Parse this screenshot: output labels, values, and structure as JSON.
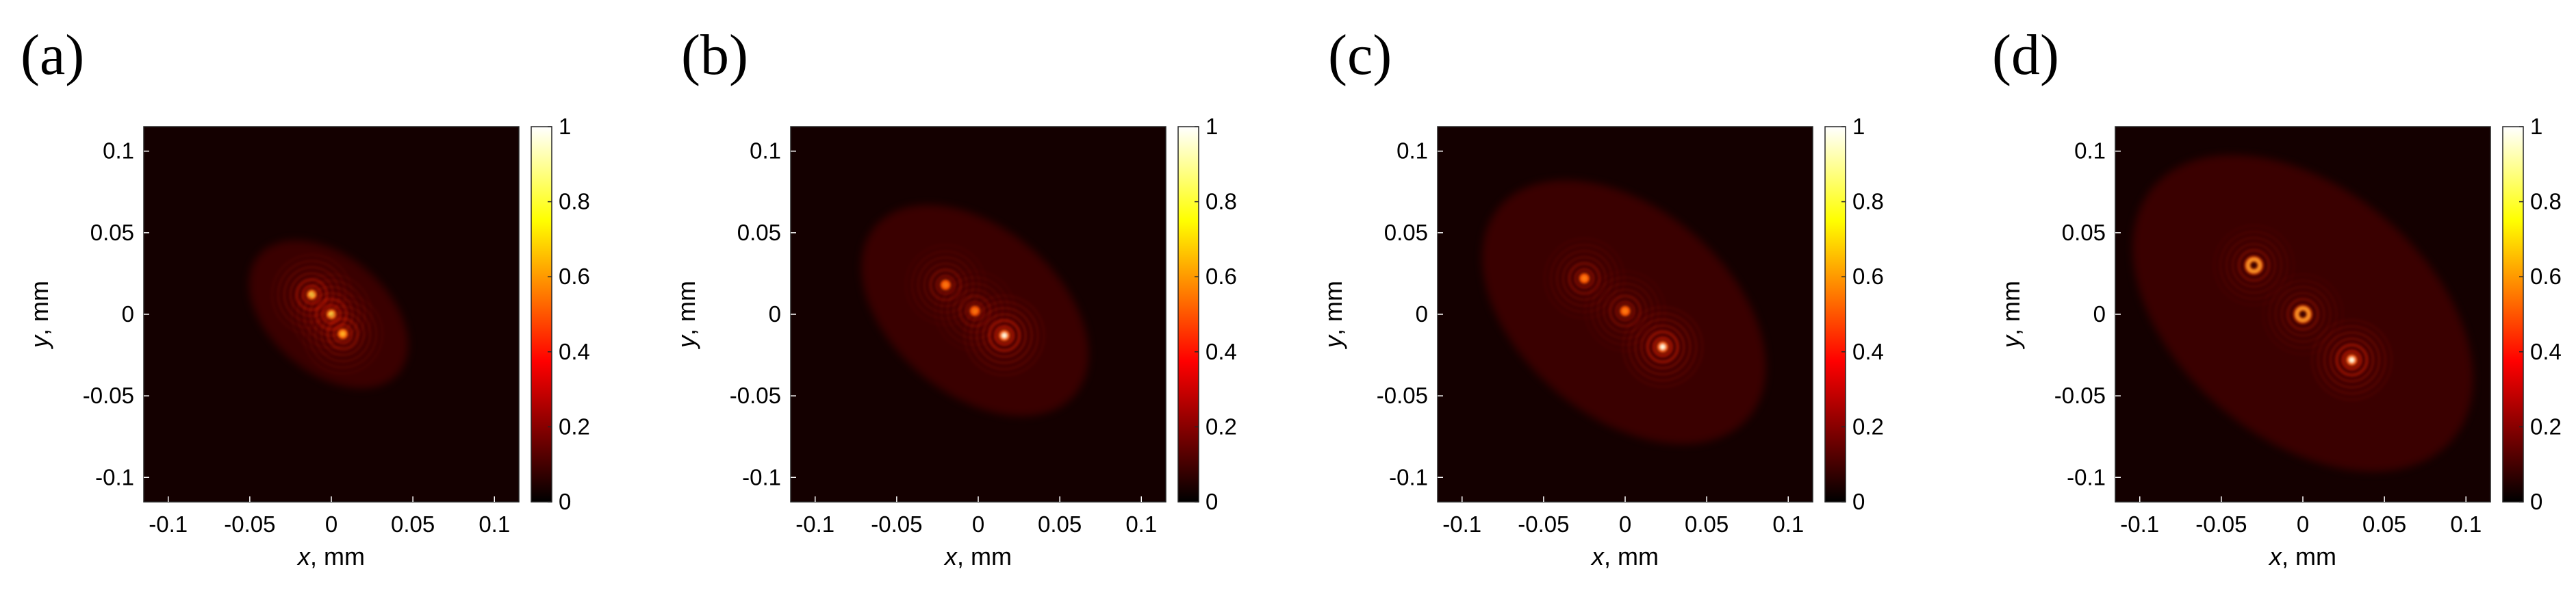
{
  "chart_data": [
    {
      "type": "heatmap",
      "panel_label": "(a)",
      "xlabel_var": "x",
      "xlabel_unit": ", mm",
      "ylabel_var": "y",
      "ylabel_unit": ", mm",
      "xlim": [
        -0.115,
        0.115
      ],
      "ylim": [
        -0.115,
        0.115
      ],
      "x_ticks": [
        -0.1,
        -0.05,
        0,
        0.05,
        0.1
      ],
      "x_tick_labels": [
        "-0.1",
        "-0.05",
        "0",
        "0.05",
        "0.1"
      ],
      "y_ticks": [
        0.1,
        0.05,
        0,
        -0.05,
        -0.1
      ],
      "y_tick_labels": [
        "0.1",
        "0.05",
        "0",
        "-0.05",
        "-0.1"
      ],
      "colorbar": {
        "range": [
          0,
          1
        ],
        "ticks": [
          1,
          0.8,
          0.6,
          0.4,
          0.2,
          0
        ],
        "tick_labels": [
          "1",
          "0.8",
          "0.6",
          "0.4",
          "0.2",
          "0"
        ],
        "colormap": "hot"
      },
      "features": [
        {
          "shape": "ring-pattern",
          "x": -0.012,
          "y": 0.012,
          "peak": 0.85
        },
        {
          "shape": "ring-pattern",
          "x": 0.0,
          "y": 0.0,
          "peak": 0.8
        },
        {
          "shape": "ring-pattern",
          "x": 0.007,
          "y": -0.012,
          "peak": 0.7
        }
      ],
      "spread_mm": 0.028
    },
    {
      "type": "heatmap",
      "panel_label": "(b)",
      "xlabel_var": "x",
      "xlabel_unit": ", mm",
      "ylabel_var": "y",
      "ylabel_unit": ", mm",
      "xlim": [
        -0.115,
        0.115
      ],
      "ylim": [
        -0.115,
        0.115
      ],
      "x_ticks": [
        -0.1,
        -0.05,
        0,
        0.05,
        0.1
      ],
      "x_tick_labels": [
        "-0.1",
        "-0.05",
        "0",
        "0.05",
        "0.1"
      ],
      "y_ticks": [
        0.1,
        0.05,
        0,
        -0.05,
        -0.1
      ],
      "y_tick_labels": [
        "0.1",
        "0.05",
        "0",
        "-0.05",
        "-0.1"
      ],
      "colorbar": {
        "range": [
          0,
          1
        ],
        "ticks": [
          1,
          0.8,
          0.6,
          0.4,
          0.2,
          0
        ],
        "tick_labels": [
          "1",
          "0.8",
          "0.6",
          "0.4",
          "0.2",
          "0"
        ],
        "colormap": "hot"
      },
      "features": [
        {
          "shape": "ring-pattern",
          "x": -0.02,
          "y": 0.018,
          "peak": 0.55
        },
        {
          "shape": "ring-pattern",
          "x": -0.002,
          "y": 0.002,
          "peak": 0.5
        },
        {
          "shape": "spot",
          "x": 0.016,
          "y": -0.013,
          "peak": 1.0
        }
      ],
      "spread_mm": 0.04
    },
    {
      "type": "heatmap",
      "panel_label": "(c)",
      "xlabel_var": "x",
      "xlabel_unit": ", mm",
      "ylabel_var": "y",
      "ylabel_unit": ", mm",
      "xlim": [
        -0.115,
        0.115
      ],
      "ylim": [
        -0.115,
        0.115
      ],
      "x_ticks": [
        -0.1,
        -0.05,
        0,
        0.05,
        0.1
      ],
      "x_tick_labels": [
        "-0.1",
        "-0.05",
        "0",
        "0.05",
        "0.1"
      ],
      "y_ticks": [
        0.1,
        0.05,
        0,
        -0.05,
        -0.1
      ],
      "y_tick_labels": [
        "0.1",
        "0.05",
        "0",
        "-0.05",
        "-0.1"
      ],
      "colorbar": {
        "range": [
          0,
          1
        ],
        "ticks": [
          1,
          0.8,
          0.6,
          0.4,
          0.2,
          0
        ],
        "tick_labels": [
          "1",
          "0.8",
          "0.6",
          "0.4",
          "0.2",
          "0"
        ],
        "colormap": "hot"
      },
      "features": [
        {
          "shape": "ring-pattern",
          "x": -0.025,
          "y": 0.022,
          "peak": 0.6
        },
        {
          "shape": "ring-pattern",
          "x": 0.0,
          "y": 0.002,
          "peak": 0.55
        },
        {
          "shape": "spot",
          "x": 0.023,
          "y": -0.02,
          "peak": 1.0
        }
      ],
      "spread_mm": 0.05
    },
    {
      "type": "heatmap",
      "panel_label": "(d)",
      "xlabel_var": "x",
      "xlabel_unit": ", mm",
      "ylabel_var": "y",
      "ylabel_unit": ", mm",
      "xlim": [
        -0.115,
        0.115
      ],
      "ylim": [
        -0.115,
        0.115
      ],
      "x_ticks": [
        -0.1,
        -0.05,
        0,
        0.05,
        0.1
      ],
      "x_tick_labels": [
        "-0.1",
        "-0.05",
        "0",
        "0.05",
        "0.1"
      ],
      "y_ticks": [
        0.1,
        0.05,
        0,
        -0.05,
        -0.1
      ],
      "y_tick_labels": [
        "0.1",
        "0.05",
        "0",
        "-0.05",
        "-0.1"
      ],
      "colorbar": {
        "range": [
          0,
          1
        ],
        "ticks": [
          1,
          0.8,
          0.6,
          0.4,
          0.2,
          0
        ],
        "tick_labels": [
          "1",
          "0.8",
          "0.6",
          "0.4",
          "0.2",
          "0"
        ],
        "colormap": "hot"
      },
      "features": [
        {
          "shape": "donut",
          "x": -0.03,
          "y": 0.03,
          "peak": 0.55
        },
        {
          "shape": "donut",
          "x": 0.0,
          "y": 0.0,
          "peak": 0.55
        },
        {
          "shape": "spot",
          "x": 0.03,
          "y": -0.028,
          "peak": 1.0
        }
      ],
      "spread_mm": 0.06
    }
  ]
}
